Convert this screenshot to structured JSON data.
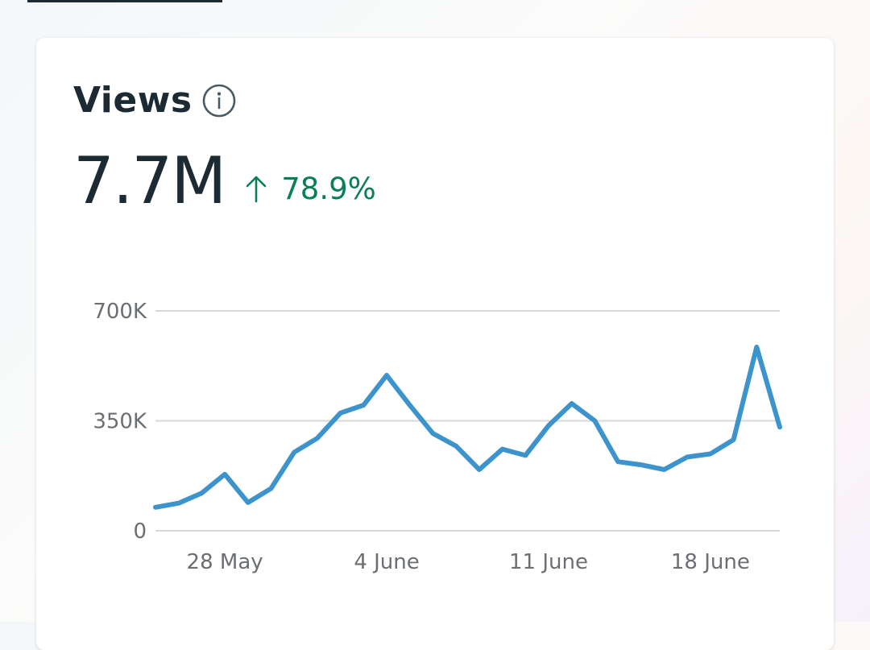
{
  "card": {
    "title": "Views",
    "info_icon": "info-icon",
    "metric_value": "7.7M",
    "change_icon": "arrow-up-icon",
    "change_percent": "78.9%",
    "change_color": "#0a7d5a"
  },
  "chart_data": {
    "type": "line",
    "title": "",
    "xlabel": "",
    "ylabel": "",
    "grid": true,
    "ylim": [
      0,
      700000
    ],
    "yticks": [
      {
        "value": 0,
        "label": "0"
      },
      {
        "value": 350000,
        "label": "350K"
      },
      {
        "value": 700000,
        "label": "700K"
      }
    ],
    "xticks": [
      {
        "index": 3,
        "label": "28 May"
      },
      {
        "index": 10,
        "label": "4 June"
      },
      {
        "index": 17,
        "label": "11 June"
      },
      {
        "index": 24,
        "label": "18 June"
      }
    ],
    "x": [
      "25 May",
      "26 May",
      "27 May",
      "28 May",
      "29 May",
      "30 May",
      "31 May",
      "1 June",
      "2 June",
      "3 June",
      "4 June",
      "5 June",
      "6 June",
      "7 June",
      "8 June",
      "9 June",
      "10 June",
      "11 June",
      "12 June",
      "13 June",
      "14 June",
      "15 June",
      "16 June",
      "17 June",
      "18 June",
      "19 June",
      "20 June",
      "21 June"
    ],
    "series": [
      {
        "color": "#3d94cc",
        "values": [
          75000,
          88000,
          120000,
          180000,
          90000,
          135000,
          250000,
          295000,
          375000,
          400000,
          495000,
          400000,
          310000,
          270000,
          195000,
          260000,
          240000,
          335000,
          405000,
          350000,
          220000,
          210000,
          195000,
          235000,
          245000,
          290000,
          585000,
          330000
        ]
      }
    ]
  }
}
